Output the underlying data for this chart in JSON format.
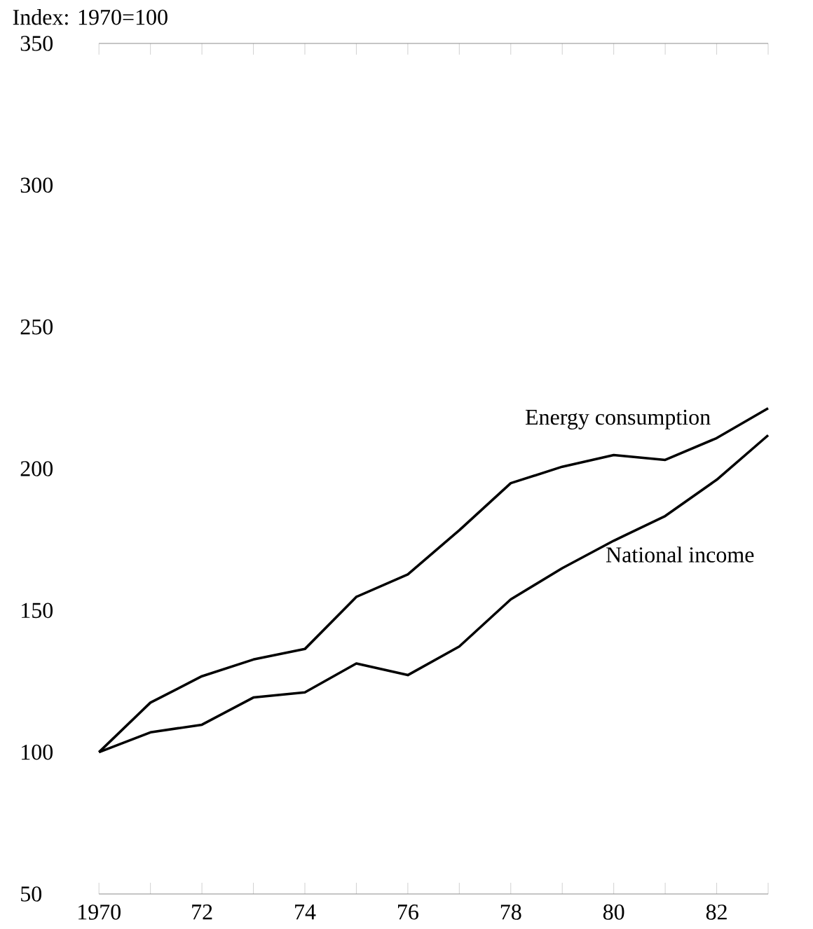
{
  "chart_data": {
    "type": "line",
    "ylabel": "Index: 1970=100",
    "marker": "none",
    "x": [
      1970,
      1971,
      1972,
      1973,
      1974,
      1975,
      1976,
      1977,
      1978,
      1979,
      1980,
      1981,
      1982,
      1983
    ],
    "series": [
      {
        "name": "Energy consumption",
        "color": "#000000",
        "values": [
          100,
          117.5,
          126.8,
          132.7,
          136.4,
          154.8,
          162.7,
          178.3,
          194.9,
          200.7,
          204.8,
          203.1,
          210.8,
          221.3
        ]
      },
      {
        "name": "National income",
        "color": "#000000",
        "values": [
          100,
          107,
          109.7,
          119.3,
          121.1,
          131.3,
          127.2,
          137.3,
          153.9,
          164.9,
          174.6,
          183.3,
          196.1,
          211.8
        ]
      }
    ],
    "xlim": [
      1970,
      1983
    ],
    "ylim": [
      50,
      350
    ],
    "xticks": [
      1970,
      {
        "value": 1971,
        "label": null
      },
      {
        "value": 1972,
        "label": "72"
      },
      {
        "value": 1973,
        "label": null
      },
      {
        "value": 1974,
        "label": "74"
      },
      {
        "value": 1975,
        "label": null
      },
      {
        "value": 1976,
        "label": "76"
      },
      {
        "value": 1977,
        "label": null
      },
      {
        "value": 1978,
        "label": "78"
      },
      {
        "value": 1979,
        "label": null
      },
      {
        "value": 1980,
        "label": "80"
      },
      {
        "value": 1981,
        "label": null
      },
      {
        "value": 1982,
        "label": "82"
      },
      {
        "value": 1983,
        "label": null
      }
    ],
    "yticks": [
      50,
      100,
      150,
      200,
      250,
      300,
      350
    ]
  }
}
